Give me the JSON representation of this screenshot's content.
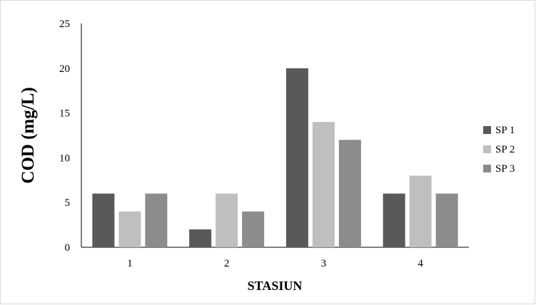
{
  "chart_data": {
    "type": "bar",
    "title": "",
    "xlabel": "STASIUN",
    "ylabel": "COD (mg/L)",
    "categories": [
      "1",
      "2",
      "3",
      "4"
    ],
    "ylim": [
      0,
      25
    ],
    "yticks": [
      0,
      5,
      10,
      15,
      20,
      25
    ],
    "grid": false,
    "legend_position": "right",
    "series": [
      {
        "name": "SP 1",
        "values": [
          6,
          2,
          20,
          6
        ],
        "color": "#595959"
      },
      {
        "name": "SP 2",
        "values": [
          4,
          6,
          14,
          8
        ],
        "color": "#bfbfbf"
      },
      {
        "name": "SP 3",
        "values": [
          6,
          4,
          12,
          6
        ],
        "color": "#8c8c8c"
      }
    ]
  }
}
